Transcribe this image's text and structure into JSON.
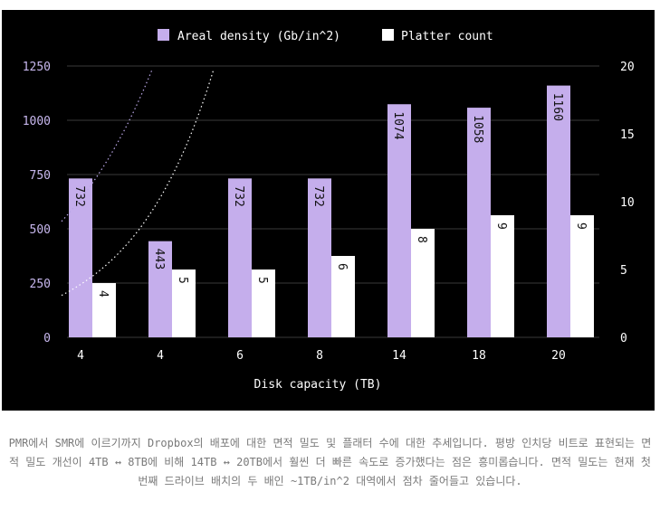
{
  "chart_data": {
    "type": "bar",
    "categories": [
      "4",
      "4",
      "6",
      "8",
      "14",
      "18",
      "20"
    ],
    "xlabel": "Disk capacity (TB)",
    "ylim_left": [
      0,
      1250
    ],
    "yticks_left": [
      0,
      250,
      500,
      750,
      1000,
      1250
    ],
    "ylim_right": [
      0,
      20
    ],
    "yticks_right": [
      0,
      5,
      10,
      15,
      20
    ],
    "series": [
      {
        "name": "Areal density (Gb/in^2)",
        "axis": "left",
        "color": "#c5aeec",
        "values": [
          732,
          443,
          732,
          732,
          1074,
          1058,
          1160
        ]
      },
      {
        "name": "Platter count",
        "axis": "right",
        "color": "#ffffff",
        "values": [
          4,
          5,
          5,
          6,
          8,
          9,
          9
        ]
      }
    ],
    "trendlines": [
      {
        "series": "Areal density (Gb/in^2)",
        "style": "dotted",
        "color": "#b9a6e6"
      },
      {
        "series": "Platter count",
        "style": "dotted",
        "color": "#ffffff"
      }
    ]
  },
  "caption": "PMR에서 SMR에 이르기까지 Dropbox의 배포에 대한 면적 밀도 및 플래터 수에 대한 추세입니다. 평방 인치당 비트로 표현되는 면적 밀도 개선이 4TB ↔ 8TB에 비해 14TB ↔ 20TB에서 훨씬 더 빠른 속도로 증가했다는 점은 흥미롭습니다. 면적 밀도는 현재 첫 번째 드라이브 배치의 두 배인 ~1TB/in^2 대역에서 점차 줄어들고 있습니다.",
  "colors": {
    "background": "#000000",
    "density": "#c5aeec",
    "platter": "#ffffff",
    "grid": "#3a3a3a",
    "axis_text": "#c8b8ef"
  }
}
